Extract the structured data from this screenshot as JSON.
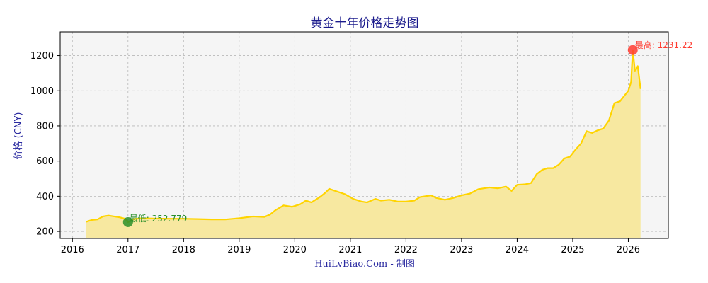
{
  "chart_data": {
    "type": "area",
    "title": "黄金十年价格走势图",
    "ylabel": "价格 (CNY)",
    "footer": "HuiLvBiao.Com - 制图",
    "x_ticks": [
      "2016",
      "2017",
      "2018",
      "2019",
      "2020",
      "2021",
      "2022",
      "2023",
      "2024",
      "2025",
      "2026"
    ],
    "y_ticks": [
      "200",
      "400",
      "600",
      "800",
      "1000",
      "1200"
    ],
    "xlim": [
      2015.78,
      2026.72
    ],
    "ylim": [
      160,
      1335
    ],
    "grid": true,
    "colors": {
      "line": "#ffd400",
      "fill": "#f7e8a0",
      "plot_bg": "#f5f5f5",
      "high_marker": "#ff3b30",
      "low_marker": "#2a8f2a"
    },
    "annotations": {
      "high": {
        "x": 2026.08,
        "y": 1231.22,
        "label": "最高: 1231.22"
      },
      "low": {
        "x": 2017.0,
        "y": 252.779,
        "label": "最低: 252.779"
      }
    },
    "series": [
      {
        "x": [
          2016.25,
          2016.35,
          2016.45,
          2016.55,
          2016.65,
          2016.75,
          2016.85,
          2016.95,
          2017.0,
          2017.1,
          2017.25,
          2017.5,
          2017.75,
          2018.0,
          2018.25,
          2018.5,
          2018.75,
          2019.0,
          2019.25,
          2019.45,
          2019.55,
          2019.65,
          2019.8,
          2019.95,
          2020.1,
          2020.2,
          2020.3,
          2020.45,
          2020.55,
          2020.62,
          2020.75,
          2020.9,
          2021.05,
          2021.2,
          2021.3,
          2021.45,
          2021.55,
          2021.7,
          2021.85,
          2022.0,
          2022.15,
          2022.25,
          2022.45,
          2022.55,
          2022.7,
          2022.85,
          2023.0,
          2023.15,
          2023.3,
          2023.5,
          2023.65,
          2023.8,
          2023.9,
          2024.0,
          2024.15,
          2024.25,
          2024.35,
          2024.45,
          2024.55,
          2024.65,
          2024.75,
          2024.85,
          2024.95,
          2025.05,
          2025.15,
          2025.25,
          2025.35,
          2025.45,
          2025.55,
          2025.65,
          2025.75,
          2025.85,
          2025.95,
          2026.0,
          2026.05,
          2026.08,
          2026.12,
          2026.17,
          2026.22
        ],
        "values": [
          255,
          265,
          268,
          285,
          290,
          285,
          280,
          272,
          253,
          270,
          275,
          273,
          272,
          272,
          270,
          268,
          268,
          275,
          285,
          282,
          295,
          320,
          348,
          340,
          355,
          375,
          365,
          395,
          420,
          442,
          428,
          412,
          385,
          370,
          365,
          385,
          375,
          380,
          370,
          370,
          375,
          395,
          405,
          390,
          380,
          390,
          405,
          415,
          440,
          450,
          445,
          455,
          430,
          465,
          468,
          475,
          525,
          550,
          560,
          560,
          580,
          615,
          625,
          665,
          700,
          770,
          760,
          775,
          785,
          830,
          930,
          940,
          980,
          1000,
          1050,
          1231.22,
          1110,
          1140,
          1010
        ]
      }
    ]
  }
}
